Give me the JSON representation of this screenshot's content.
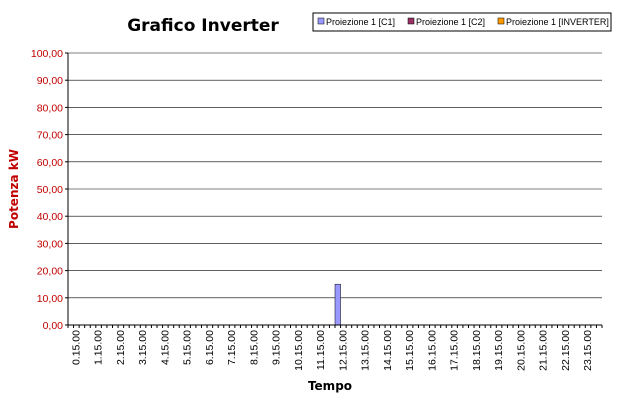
{
  "chart_data": {
    "type": "bar",
    "stacked": true,
    "title": "Grafico Inverter",
    "xlabel": "Tempo",
    "ylabel": "Potenza kW",
    "ylim": [
      0,
      100
    ],
    "ytick_step": 10,
    "ytick_labels": [
      "0,00",
      "10,00",
      "20,00",
      "30,00",
      "40,00",
      "50,00",
      "60,00",
      "70,00",
      "80,00",
      "90,00",
      "100,00"
    ],
    "grid": true,
    "legend_position": "top-right",
    "colors": {
      "c1": "#9999ff",
      "c2": "#993366",
      "inverter": "#ff9900",
      "grid": "#000000",
      "ylabel": "#c00000"
    },
    "xtick_labels": [
      "0.15.00",
      "1.15.00",
      "2.15.00",
      "3.15.00",
      "4.15.00",
      "5.15.00",
      "6.15.00",
      "7.15.00",
      "8.15.00",
      "9.15.00",
      "10.15.00",
      "11.15.00",
      "12.15.00",
      "13.15.00",
      "14.15.00",
      "15.15.00",
      "16.15.00",
      "17.15.00",
      "18.15.00",
      "19.15.00",
      "20.15.00",
      "21.15.00",
      "22.15.00",
      "23.15.00"
    ],
    "category_count": 96,
    "series": [
      {
        "name": "Proiezione 1 [C1]",
        "color": "#9999ff",
        "values": [
          0,
          0,
          0,
          0,
          0,
          0,
          0,
          0,
          0,
          0,
          0,
          0,
          0,
          0,
          0,
          0,
          0,
          0,
          0,
          0,
          0,
          0,
          0,
          0,
          0,
          0,
          0,
          0,
          0,
          0,
          0,
          0,
          0,
          0,
          0,
          0,
          0,
          0,
          0,
          0,
          0,
          0,
          0,
          0,
          0,
          0,
          0,
          0,
          15,
          0,
          0,
          0,
          0,
          0,
          0,
          0,
          0,
          0,
          0,
          0,
          0,
          0,
          0,
          0,
          0,
          0,
          0,
          0,
          0,
          0,
          0,
          0,
          0,
          0,
          0,
          0,
          0,
          0,
          0,
          0,
          0,
          0,
          0,
          0,
          0,
          0,
          0,
          0,
          0,
          0,
          0,
          0,
          0,
          0,
          0,
          0
        ]
      },
      {
        "name": "Proiezione 1 [C2]",
        "color": "#993366",
        "values": [
          0,
          0,
          0,
          0,
          0,
          0,
          0,
          0,
          0,
          0,
          0,
          0,
          0,
          0,
          0,
          0,
          0,
          0,
          0,
          0,
          0,
          0,
          0,
          0,
          0,
          0,
          0,
          0,
          0,
          0,
          0,
          0,
          0,
          0,
          0,
          0,
          0,
          0,
          0,
          0,
          0,
          0,
          0,
          0,
          0,
          0,
          0,
          0,
          0,
          0,
          0,
          0,
          0,
          0,
          0,
          0,
          0,
          0,
          0,
          0,
          0,
          0,
          0,
          0,
          0,
          0,
          0,
          0,
          0,
          0,
          0,
          0,
          0,
          0,
          0,
          0,
          0,
          0,
          0,
          0,
          0,
          0,
          0,
          0,
          0,
          0,
          0,
          0,
          0,
          0,
          0,
          0,
          0,
          0,
          0,
          0
        ]
      },
      {
        "name": "Proiezione 1 [INVERTER]",
        "color": "#ff9900",
        "values": [
          0,
          0,
          0,
          0,
          0,
          0,
          0,
          0,
          0,
          0,
          0,
          0,
          0,
          0,
          0,
          0,
          0,
          0,
          0,
          0,
          0,
          0,
          0,
          0,
          0,
          0,
          0,
          0,
          0,
          0,
          0,
          0,
          0,
          0,
          0,
          0,
          0,
          0,
          0,
          0,
          0,
          0,
          0,
          0,
          0,
          0,
          0,
          0,
          0,
          0,
          0,
          0,
          0,
          0,
          0,
          0,
          0,
          0,
          0,
          0,
          0,
          0,
          0,
          0,
          0,
          0,
          0,
          0,
          0,
          0,
          0,
          0,
          0,
          0,
          0,
          0,
          0,
          0,
          0,
          0,
          0,
          0,
          0,
          0,
          0,
          0,
          0,
          0,
          0,
          0,
          0,
          0,
          0,
          0,
          0,
          0
        ]
      }
    ]
  }
}
